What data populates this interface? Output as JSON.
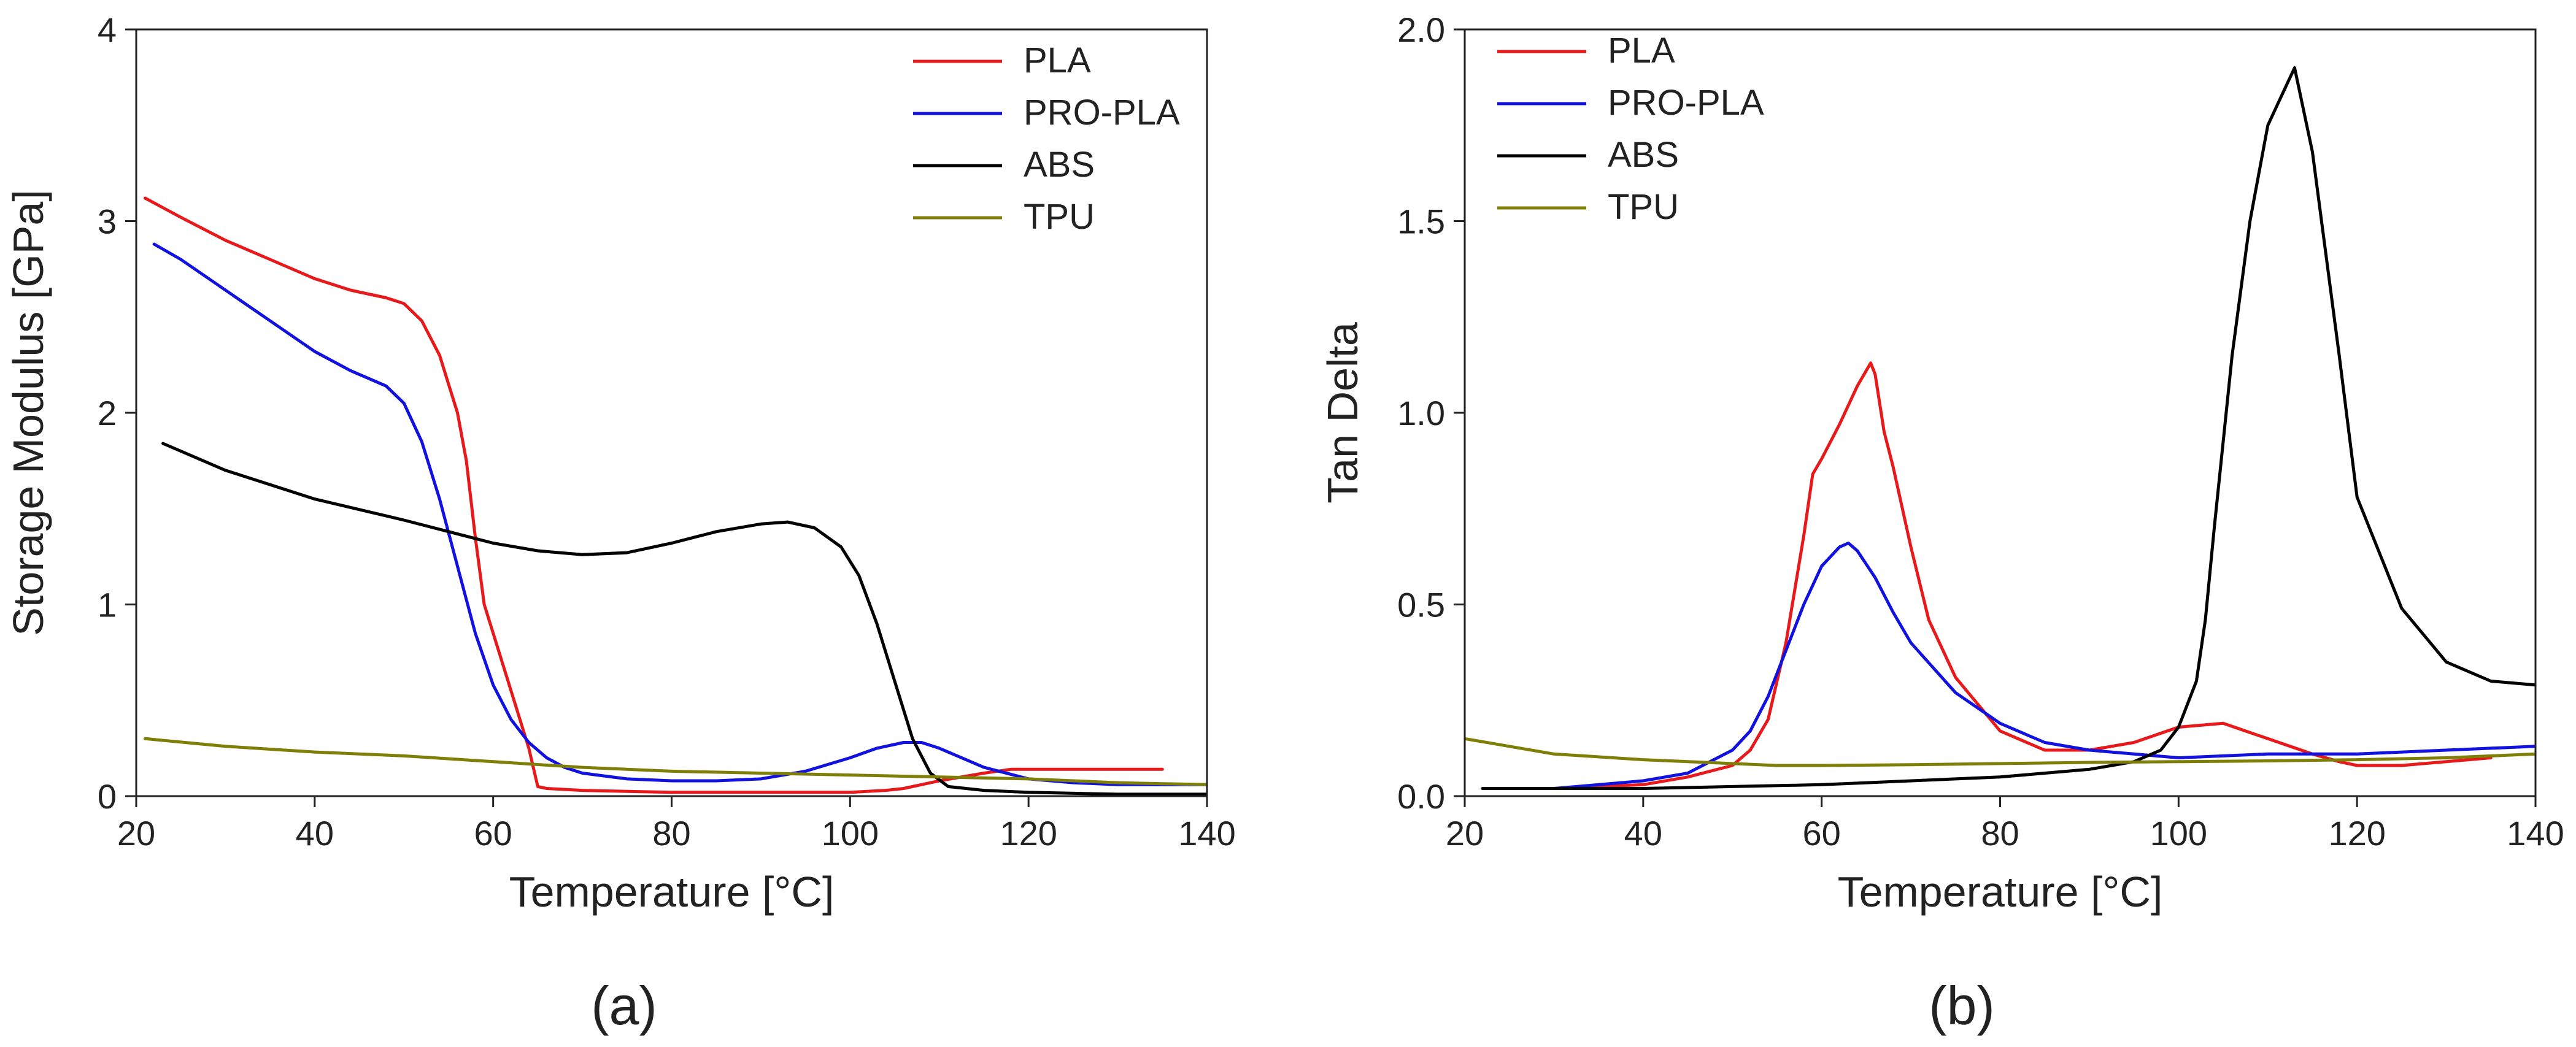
{
  "chart_data": [
    {
      "id": "storage-modulus",
      "type": "line",
      "panel_label": "(a)",
      "xlabel": "Temperature [°C]",
      "ylabel": "Storage Modulus [GPa]",
      "xlim": [
        20,
        140
      ],
      "ylim": [
        0,
        4
      ],
      "xticks": [
        20,
        40,
        60,
        80,
        100,
        120,
        140
      ],
      "yticks": [
        0,
        1,
        2,
        3,
        4
      ],
      "legend_position": "top-right",
      "series": [
        {
          "name": "PLA",
          "color": "#e8191b",
          "x": [
            21,
            25,
            30,
            35,
            40,
            44,
            48,
            50,
            52,
            54,
            56,
            57,
            58,
            59,
            60,
            62,
            64,
            65,
            66,
            70,
            80,
            90,
            100,
            104,
            106,
            110,
            115,
            118,
            120,
            125,
            130,
            135
          ],
          "y": [
            3.12,
            3.02,
            2.9,
            2.8,
            2.7,
            2.64,
            2.6,
            2.57,
            2.48,
            2.3,
            2.0,
            1.75,
            1.35,
            1.0,
            0.85,
            0.55,
            0.25,
            0.05,
            0.04,
            0.03,
            0.02,
            0.02,
            0.02,
            0.03,
            0.04,
            0.08,
            0.12,
            0.14,
            0.14,
            0.14,
            0.14,
            0.14
          ]
        },
        {
          "name": "PRO-PLA",
          "color": "#1212e0",
          "x": [
            22,
            25,
            30,
            35,
            40,
            44,
            48,
            50,
            52,
            54,
            56,
            58,
            60,
            62,
            64,
            66,
            68,
            70,
            75,
            80,
            85,
            90,
            95,
            100,
            103,
            106,
            108,
            110,
            115,
            120,
            125,
            130,
            135,
            140
          ],
          "y": [
            2.88,
            2.8,
            2.64,
            2.48,
            2.32,
            2.22,
            2.14,
            2.05,
            1.85,
            1.55,
            1.2,
            0.85,
            0.58,
            0.4,
            0.28,
            0.2,
            0.15,
            0.12,
            0.09,
            0.08,
            0.08,
            0.09,
            0.13,
            0.2,
            0.25,
            0.28,
            0.28,
            0.25,
            0.15,
            0.09,
            0.07,
            0.06,
            0.06,
            0.06
          ]
        },
        {
          "name": "ABS",
          "color": "#000000",
          "x": [
            23,
            30,
            40,
            50,
            60,
            65,
            70,
            75,
            80,
            85,
            90,
            93,
            96,
            99,
            101,
            103,
            105,
            107,
            109,
            111,
            115,
            120,
            130,
            140
          ],
          "y": [
            1.84,
            1.7,
            1.55,
            1.44,
            1.32,
            1.28,
            1.26,
            1.27,
            1.32,
            1.38,
            1.42,
            1.43,
            1.4,
            1.3,
            1.15,
            0.9,
            0.6,
            0.3,
            0.12,
            0.05,
            0.03,
            0.02,
            0.01,
            0.01
          ]
        },
        {
          "name": "TPU",
          "color": "#7f7f08",
          "x": [
            21,
            30,
            40,
            50,
            60,
            70,
            80,
            90,
            100,
            110,
            120,
            130,
            140
          ],
          "y": [
            0.3,
            0.26,
            0.23,
            0.21,
            0.18,
            0.15,
            0.13,
            0.12,
            0.11,
            0.1,
            0.09,
            0.07,
            0.06
          ]
        }
      ]
    },
    {
      "id": "tan-delta",
      "type": "line",
      "panel_label": "(b)",
      "xlabel": "Temperature [°C]",
      "ylabel": "Tan Delta",
      "xlim": [
        20,
        140
      ],
      "ylim": [
        0,
        2.0
      ],
      "xticks": [
        20,
        40,
        60,
        80,
        100,
        120,
        140
      ],
      "yticks": [
        0.0,
        0.5,
        1.0,
        1.5,
        2.0
      ],
      "legend_position": "top-left",
      "series": [
        {
          "name": "PLA",
          "color": "#e8191b",
          "x": [
            22,
            30,
            40,
            45,
            50,
            52,
            54,
            56,
            58,
            59,
            60,
            62,
            64,
            65.5,
            66,
            67,
            68,
            70,
            72,
            75,
            80,
            85,
            90,
            95,
            100,
            105,
            110,
            115,
            118,
            120,
            122,
            125,
            130,
            135
          ],
          "y": [
            0.02,
            0.02,
            0.03,
            0.05,
            0.08,
            0.12,
            0.2,
            0.4,
            0.68,
            0.84,
            0.88,
            0.97,
            1.07,
            1.13,
            1.1,
            0.95,
            0.86,
            0.65,
            0.46,
            0.31,
            0.17,
            0.12,
            0.12,
            0.14,
            0.18,
            0.19,
            0.15,
            0.11,
            0.09,
            0.08,
            0.08,
            0.08,
            0.09,
            0.1
          ]
        },
        {
          "name": "PRO-PLA",
          "color": "#1212e0",
          "x": [
            22,
            30,
            40,
            45,
            50,
            52,
            54,
            56,
            58,
            60,
            62,
            63,
            64,
            66,
            68,
            70,
            75,
            80,
            85,
            90,
            95,
            100,
            110,
            120,
            130,
            140
          ],
          "y": [
            0.02,
            0.02,
            0.04,
            0.06,
            0.12,
            0.17,
            0.26,
            0.38,
            0.5,
            0.6,
            0.65,
            0.66,
            0.64,
            0.57,
            0.48,
            0.4,
            0.27,
            0.19,
            0.14,
            0.12,
            0.11,
            0.1,
            0.11,
            0.11,
            0.12,
            0.13
          ]
        },
        {
          "name": "ABS",
          "color": "#000000",
          "x": [
            22,
            40,
            60,
            80,
            90,
            95,
            98,
            100,
            102,
            103,
            104,
            106,
            108,
            110,
            111,
            113,
            115,
            118,
            120,
            125,
            130,
            135,
            140
          ],
          "y": [
            0.02,
            0.02,
            0.03,
            0.05,
            0.07,
            0.09,
            0.12,
            0.18,
            0.3,
            0.46,
            0.7,
            1.15,
            1.5,
            1.75,
            1.8,
            1.9,
            1.68,
            1.15,
            0.78,
            0.49,
            0.35,
            0.3,
            0.29
          ]
        },
        {
          "name": "TPU",
          "color": "#7f7f08",
          "x": [
            20,
            25,
            30,
            40,
            50,
            55,
            60,
            70,
            80,
            90,
            100,
            110,
            120,
            130,
            140
          ],
          "y": [
            0.15,
            0.13,
            0.11,
            0.095,
            0.085,
            0.08,
            0.08,
            0.082,
            0.085,
            0.088,
            0.09,
            0.092,
            0.095,
            0.1,
            0.11
          ]
        }
      ]
    }
  ]
}
